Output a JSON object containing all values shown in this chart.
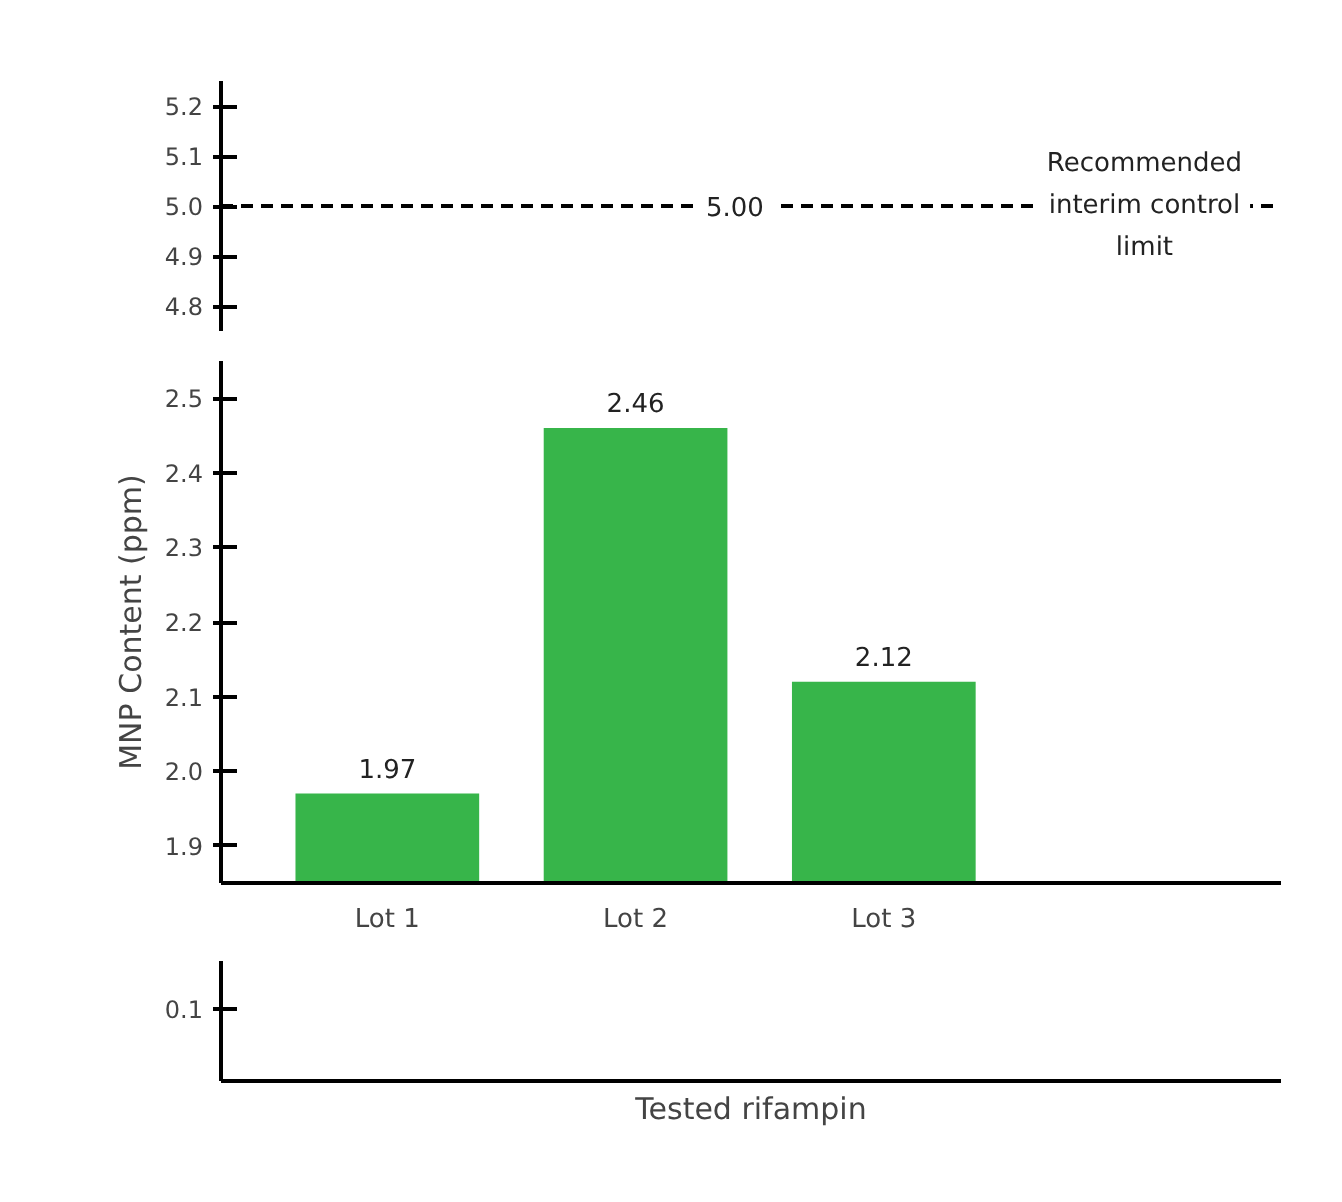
{
  "chart_data": [
    {
      "type": "bar",
      "categories": [
        null,
        null,
        null
      ],
      "values": [
        null,
        null,
        null
      ],
      "ylim": [
        4.75,
        5.25
      ],
      "yticks": [
        5.2,
        5.1,
        {
          "value": 5,
          "label": "5.0"
        },
        4.9,
        4.8
      ],
      "ref_lines": [
        {
          "axis": "y",
          "value": 5,
          "label": "5.00",
          "line_style": "dashed",
          "color": "#000000"
        }
      ],
      "annotations": [
        "Recommended interim control limit"
      ],
      "tick_labels": "y"
    },
    {
      "type": "bar",
      "categories": [
        "Lot 1",
        "Lot 2",
        "Lot 3"
      ],
      "values": [
        1.97,
        2.46,
        2.12
      ],
      "color": "#37b54a",
      "ylim": [
        1.85,
        2.55
      ],
      "yticks": [
        2.5,
        2.4,
        2.3,
        2.2,
        2.1,
        {
          "value": 2,
          "label": "2.0"
        },
        1.9
      ],
      "ylabel": "MNP Content (ppm)",
      "data_labels": true
    },
    {
      "type": "other",
      "annotations": [
        "0.1"
      ],
      "xlabel": "Tested rifampin"
    }
  ]
}
